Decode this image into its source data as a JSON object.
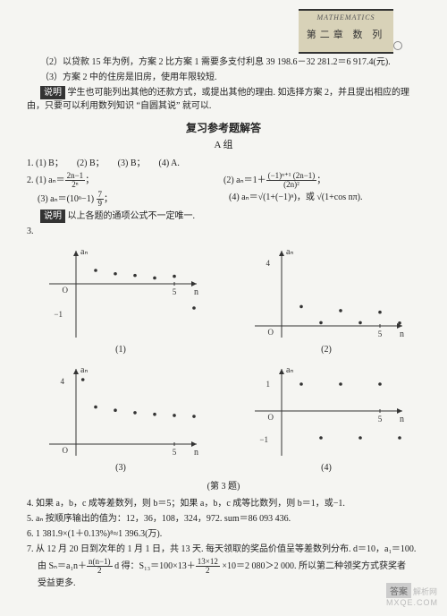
{
  "header": {
    "mathematics": "MATHEMATICS",
    "subhead": "第二章  数  列"
  },
  "top_paragraphs": {
    "p1": "（2）以贷款 15 年为例，方案 2 比方案 1 需要多支付利息 39 198.6－32 281.2＝6 917.4(元).",
    "p2": "（3）方案 2 中的住房是旧房，使用年限较短.",
    "sm_label": "说明",
    "sm_text": " 学生也可能列出其他的还款方式，或提出其他的理由. 如选择方案 2，并且提出相应的理由，只要可以利用数列知识 “自圆其说” 就可以."
  },
  "answers": {
    "title": "复习参考题解答",
    "group": "A 组",
    "q1": "1. (1) B；      (2) B；      (3) B；      (4) A.",
    "q2_stem": "2. (1) ",
    "q2_1_lhs": "aₙ＝",
    "q2_1_num": "2n−1",
    "q2_1_den": "2ⁿ",
    "q2_2_prefix": "(2) aₙ＝1＋",
    "q2_2_num": "(−1)ⁿ⁺¹ (2n−1)",
    "q2_2_den": "(2n)²",
    "q2_3_prefix": "(3) aₙ＝(10ⁿ−1) ",
    "q2_3_num": "7",
    "q2_3_den": "9",
    "q2_4": "(4) aₙ＝√(1+(−1)ⁿ)，或 √(1+cos nπ).",
    "sm2_label": "说明",
    "sm2_text": " 以上各题的通项公式不一定唯一.",
    "q3_stem": "3."
  },
  "charts": {
    "axis_color": "#333",
    "point_color": "#333",
    "bg": "#f5f5f2",
    "width": 190,
    "height": 110,
    "y_label": "aₙ",
    "x_label": "n",
    "ox": "O",
    "x_tick_label": "5",
    "series": [
      {
        "caption": "(1)",
        "origin": [
          45,
          45
        ],
        "x_scale": 22,
        "y_scale": 30,
        "y_neg_label": "−1",
        "y_neg_label_pos": [
          30,
          82
        ],
        "points": [
          [
            1,
            0.5
          ],
          [
            2,
            0.375
          ],
          [
            3,
            0.3125
          ],
          [
            4,
            0.21875
          ],
          [
            5,
            0.28125
          ],
          [
            6,
            -0.9
          ]
        ]
      },
      {
        "caption": "(2)",
        "origin": [
          45,
          92
        ],
        "x_scale": 22,
        "y_scale": 18,
        "y_pos_label": "4",
        "y_pos_label_pos": [
          32,
          25
        ],
        "points": [
          [
            1,
            1.2
          ],
          [
            2,
            0.2
          ],
          [
            3,
            0.95
          ],
          [
            4,
            0.2
          ],
          [
            5,
            0.85
          ],
          [
            6,
            0.18
          ]
        ]
      },
      {
        "caption": "(3)",
        "origin": [
          45,
          92
        ],
        "x_scale": 22,
        "y_scale": 18,
        "y_pos_label": "4",
        "y_pos_label_pos": [
          32,
          25
        ],
        "points": [
          [
            0.35,
            4.0
          ],
          [
            1,
            2.3
          ],
          [
            2,
            2.1
          ],
          [
            3,
            1.95
          ],
          [
            4,
            1.85
          ],
          [
            5,
            1.78
          ],
          [
            6,
            1.72
          ]
        ]
      },
      {
        "caption": "(4)",
        "origin": [
          45,
          55
        ],
        "x_scale": 22,
        "y_scale": 30,
        "y_pos_label": "1",
        "y_pos_label_pos": [
          32,
          28
        ],
        "y_neg_label": "−1",
        "y_neg_label_pos": [
          30,
          90
        ],
        "points": [
          [
            1,
            1
          ],
          [
            2,
            -1
          ],
          [
            3,
            1
          ],
          [
            4,
            -1
          ],
          [
            5,
            1
          ],
          [
            6,
            -1
          ]
        ]
      }
    ],
    "big_caption": "(第 3 题)"
  },
  "bottom_paragraphs": {
    "q4": "4. 如果 a，b，c 成等差数列，则 b＝5；如果 a，b，c 成等比数列，则 b＝1，或−1.",
    "q5": "5. aₙ 按顺序输出的值为：12，36，108，324，972. sum＝86 093 436.",
    "q6": "6. 1 381.9×(1＋0.13%)⁸≈1 396.3(万).",
    "q7a": "7. 从 12 月 20 日到次年的 1 月 1 日，共 13 天. 每天领取的奖品价值呈等差数列分布. d＝10，a₁＝100.",
    "q7b_prefix": "由 Sₙ＝a₁n＋",
    "q7b_num": "n(n−1)",
    "q7b_den": "2",
    "q7b_mid": " d 得：S₁₃＝100×13＋",
    "q7b_num2": "13×12",
    "q7b_den2": "2",
    "q7b_suffix": " ×10＝2 080＞2 000. 所以第二种领奖方式获奖者",
    "q7c": "受益更多."
  },
  "watermark": {
    "box": "答案",
    "text": "解析网",
    "url": "MXQE.COM"
  }
}
